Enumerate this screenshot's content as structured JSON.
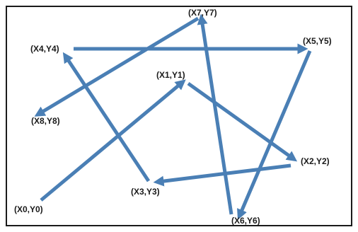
{
  "colors": {
    "arrow": "#4a7fb5",
    "frame": "#1a1a1a",
    "label": "#1a1a1a",
    "background": "#ffffff"
  },
  "points": {
    "p0": "(X0,Y0)",
    "p1": "(X1,Y1)",
    "p2": "(X2,Y2)",
    "p3": "(X3,Y3)",
    "p4": "(X4,Y4)",
    "p5": "(X5,Y5)",
    "p6": "(X6,Y6)",
    "p7": "(X7,Y7)",
    "p8": "(X8,Y8)"
  },
  "path_order": [
    "(X0,Y0)",
    "(X1,Y1)",
    "(X2,Y2)",
    "(X3,Y3)",
    "(X4,Y4)",
    "(X5,Y5)",
    "(X6,Y6)",
    "(X7,Y7)",
    "(X8,Y8)"
  ]
}
